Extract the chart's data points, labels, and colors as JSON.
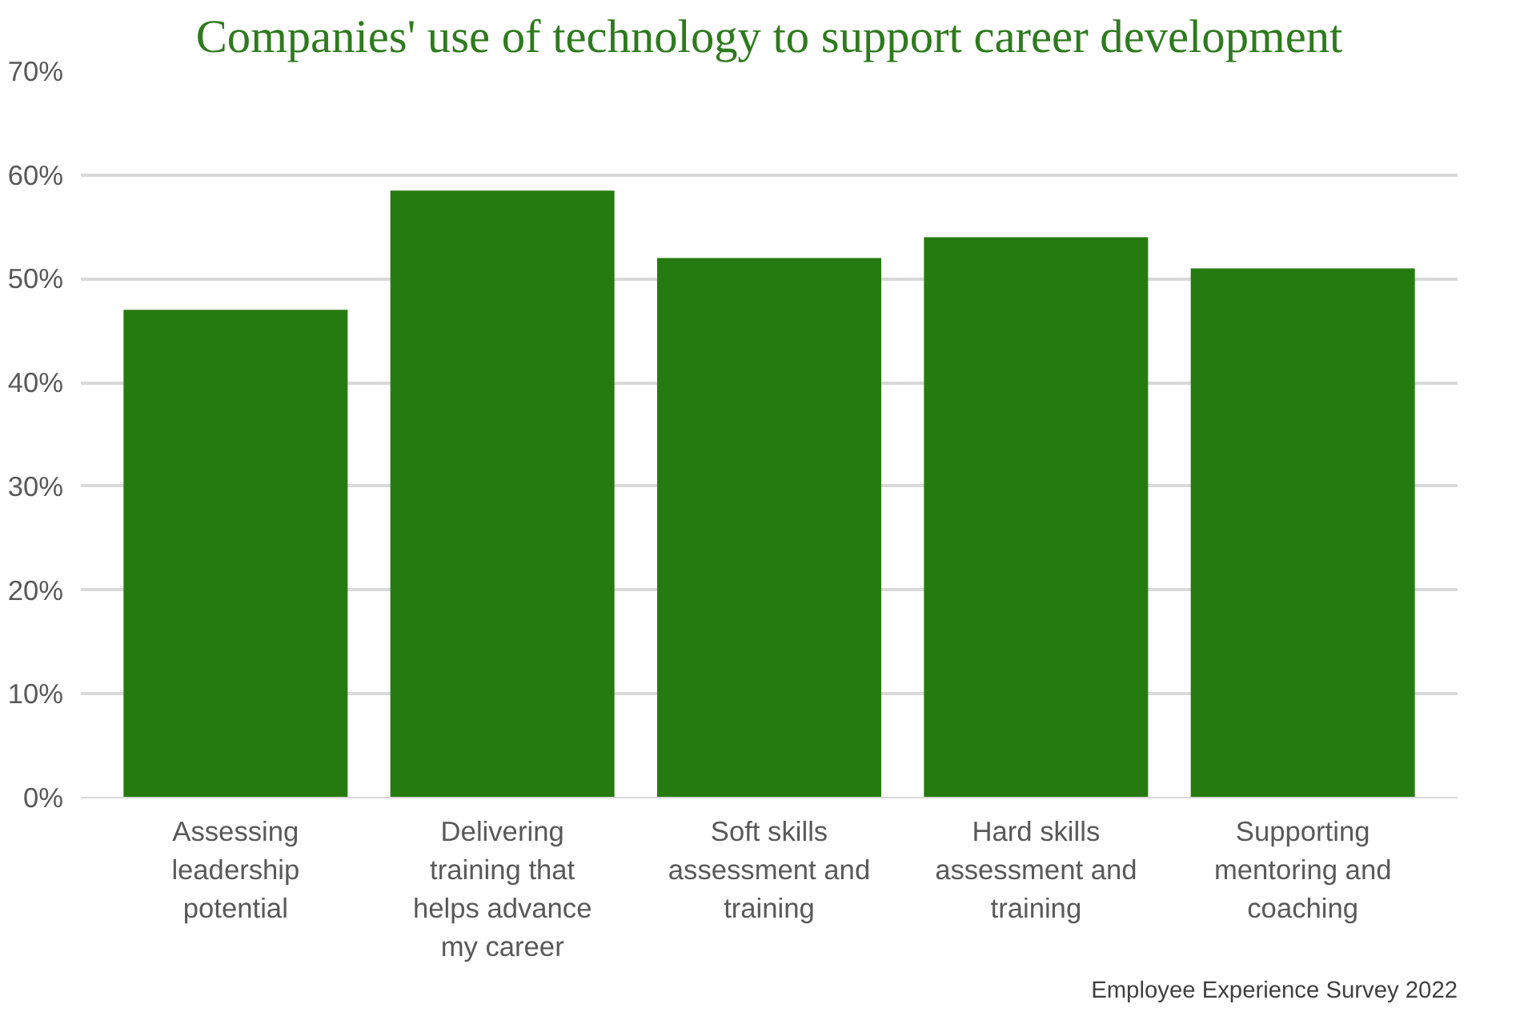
{
  "chart_data": {
    "type": "bar",
    "title": "Companies' use of technology to support career development",
    "categories": [
      "Assessing leadership potential",
      "Delivering training that helps advance my career",
      "Soft skills assessment and training",
      "Hard skills assessment and training",
      "Supporting mentoring and coaching"
    ],
    "values": [
      47,
      58.5,
      52,
      54,
      51
    ],
    "color": "#267b10",
    "ylim": [
      0,
      70
    ],
    "yticks": [
      {
        "value": 0,
        "label": "0%"
      },
      {
        "value": 10,
        "label": "10%"
      },
      {
        "value": 20,
        "label": "20%"
      },
      {
        "value": 30,
        "label": "30%"
      },
      {
        "value": 40,
        "label": "40%"
      },
      {
        "value": 50,
        "label": "50%"
      },
      {
        "value": 60,
        "label": "60%"
      },
      {
        "value": 70,
        "label": "70%"
      }
    ],
    "grid": "y",
    "annotations": [
      "Employee Experience Survey 2022"
    ]
  }
}
